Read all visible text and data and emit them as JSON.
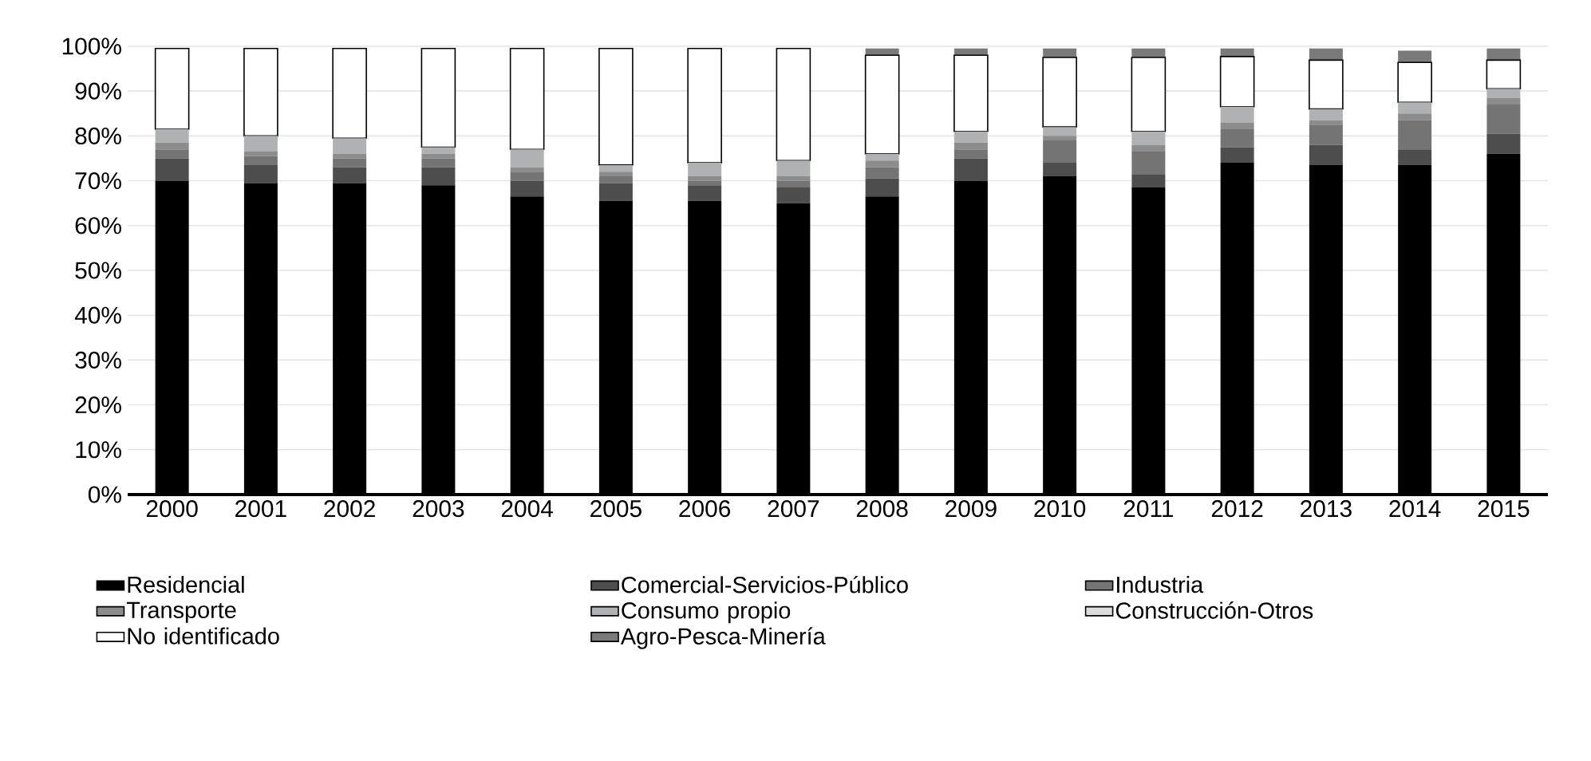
{
  "chart_data": {
    "type": "bar",
    "stacked": true,
    "categories": [
      "2000",
      "2001",
      "2002",
      "2003",
      "2004",
      "2005",
      "2006",
      "2007",
      "2008",
      "2009",
      "2010",
      "2011",
      "2012",
      "2013",
      "2014",
      "2015"
    ],
    "series": [
      {
        "name": "Residencial",
        "color": "#000000",
        "values": [
          70,
          69.5,
          69.5,
          69,
          66.5,
          65.5,
          65.5,
          65,
          66.5,
          70,
          71,
          68.5,
          74,
          73.5,
          73.5,
          76
        ]
      },
      {
        "name": "Comercial-Servicios-Público",
        "color": "#4d4d4d",
        "values": [
          5,
          4,
          3.5,
          4,
          3.5,
          4,
          3.5,
          3.5,
          4,
          5,
          3,
          3,
          3.5,
          4.5,
          3.5,
          4.5
        ]
      },
      {
        "name": "Industria",
        "color": "#747474",
        "values": [
          2,
          2,
          2,
          2,
          2,
          1.5,
          1,
          1.5,
          2.5,
          2,
          5,
          5,
          4,
          4.5,
          6.5,
          6.5
        ]
      },
      {
        "name": "Transporte",
        "color": "#8c8c8c",
        "values": [
          1.5,
          1,
          1,
          1,
          1,
          1,
          1,
          1,
          1.5,
          1.5,
          1,
          1.5,
          1.5,
          1,
          1.5,
          1.5
        ]
      },
      {
        "name": "Consumo propio",
        "color": "#b0b1b3",
        "values": [
          3,
          3.5,
          3.5,
          1.5,
          4,
          1.5,
          3,
          3.5,
          1.5,
          2.5,
          2,
          3,
          3.5,
          2.5,
          2.5,
          2
        ]
      },
      {
        "name": "Construcción-Otros",
        "color": "#dcdcdc",
        "values": [
          null,
          null,
          null,
          null,
          null,
          null,
          null,
          null,
          null,
          null,
          null,
          null,
          null,
          null,
          null,
          null
        ]
      },
      {
        "name": "No identificado",
        "color": "#ffffff",
        "values": [
          18,
          19.5,
          20,
          22,
          22.5,
          26,
          25.5,
          25,
          22,
          17,
          15.5,
          16.5,
          11.2,
          10.9,
          8.9,
          6.4
        ]
      },
      {
        "name": "Agro-Pesca-Minería",
        "color": "#7a7a7a",
        "values": [
          0,
          0,
          0,
          0,
          0,
          0,
          0,
          0,
          1.5,
          1.5,
          2,
          2,
          1.8,
          2.6,
          2.6,
          2.6
        ]
      }
    ],
    "ylim": [
      0,
      100
    ],
    "yticks": [
      {
        "value": 0,
        "label": "0%"
      },
      {
        "value": 10,
        "label": "10%"
      },
      {
        "value": 20,
        "label": "20%"
      },
      {
        "value": 30,
        "label": "30%"
      },
      {
        "value": 40,
        "label": "40%"
      },
      {
        "value": 50,
        "label": "50%"
      },
      {
        "value": 60,
        "label": "60%"
      },
      {
        "value": 70,
        "label": "70%"
      },
      {
        "value": 80,
        "label": "80%"
      },
      {
        "value": 90,
        "label": "90%"
      },
      {
        "value": 100,
        "label": "100%"
      }
    ],
    "grid": "y",
    "legend": "bottom"
  }
}
